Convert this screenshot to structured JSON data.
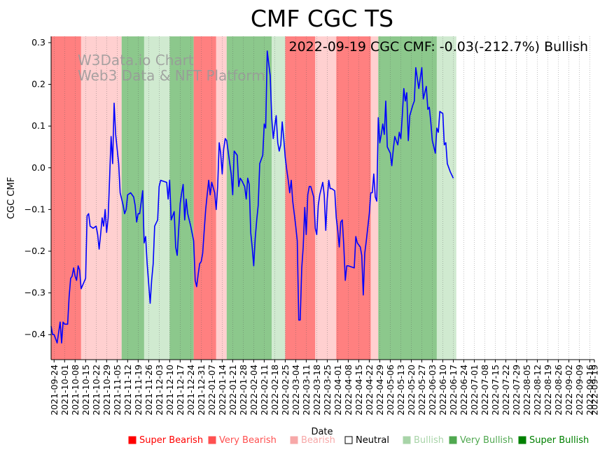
{
  "chart_data": {
    "type": "line",
    "title": "CMF CGC TS",
    "annotation": "2022-09-19 CGC CMF: -0.03(-212.7%) Bullish",
    "watermark": [
      "W3Data.io Chart",
      "Web3 Data & NFT Platform"
    ],
    "xlabel": "Date",
    "ylabel": "CGC CMF",
    "x_start": "2021-09-22",
    "x_end": "2022-09-19",
    "ylim": [
      -0.46,
      0.315
    ],
    "y_ticks": [
      -0.4,
      -0.3,
      -0.2,
      -0.1,
      0.0,
      0.1,
      0.2,
      0.3
    ],
    "y_tick_labels": [
      "−0.4",
      "−0.3",
      "−0.2",
      "−0.1",
      "0.0",
      "0.1",
      "0.2",
      "0.3"
    ],
    "x_tick_labels": [
      "2021-09-24",
      "2021-10-01",
      "2021-10-08",
      "2021-10-15",
      "2021-10-22",
      "2021-10-29",
      "2021-11-05",
      "2021-11-12",
      "2021-11-19",
      "2021-11-26",
      "2021-12-03",
      "2021-12-10",
      "2021-12-17",
      "2021-12-24",
      "2021-12-31",
      "2022-01-07",
      "2022-01-14",
      "2022-01-21",
      "2022-01-28",
      "2022-02-04",
      "2022-02-11",
      "2022-02-18",
      "2022-02-25",
      "2022-03-04",
      "2022-03-11",
      "2022-03-18",
      "2022-03-25",
      "2022-04-01",
      "2022-04-08",
      "2022-04-15",
      "2022-04-22",
      "2022-04-29",
      "2022-05-06",
      "2022-05-13",
      "2022-05-20",
      "2022-05-27",
      "2022-06-03",
      "2022-06-10",
      "2022-06-17",
      "2022-06-24",
      "2022-07-01",
      "2022-07-08",
      "2022-07-15",
      "2022-07-22",
      "2022-07-29",
      "2022-08-05",
      "2022-08-12",
      "2022-08-19",
      "2022-08-26",
      "2022-09-02",
      "2022-09-09",
      "2022-09-16",
      "2022-09-19"
    ],
    "series": [
      {
        "color": "#0000ff",
        "points": [
          [
            "2021-09-22",
            -0.38
          ],
          [
            "2021-09-23",
            -0.4
          ],
          [
            "2021-09-24",
            -0.4
          ],
          [
            "2021-09-26",
            -0.42
          ],
          [
            "2021-09-28",
            -0.37
          ],
          [
            "2021-09-29",
            -0.42
          ],
          [
            "2021-09-30",
            -0.37
          ],
          [
            "2021-10-01",
            -0.375
          ],
          [
            "2021-10-03",
            -0.375
          ],
          [
            "2021-10-04",
            -0.31
          ],
          [
            "2021-10-05",
            -0.265
          ],
          [
            "2021-10-06",
            -0.26
          ],
          [
            "2021-10-07",
            -0.24
          ],
          [
            "2021-10-08",
            -0.26
          ],
          [
            "2021-10-09",
            -0.27
          ],
          [
            "2021-10-10",
            -0.235
          ],
          [
            "2021-10-11",
            -0.245
          ],
          [
            "2021-10-12",
            -0.29
          ],
          [
            "2021-10-15",
            -0.265
          ],
          [
            "2021-10-16",
            -0.115
          ],
          [
            "2021-10-17",
            -0.11
          ],
          [
            "2021-10-18",
            -0.14
          ],
          [
            "2021-10-20",
            -0.145
          ],
          [
            "2021-10-22",
            -0.14
          ],
          [
            "2021-10-23",
            -0.16
          ],
          [
            "2021-10-24",
            -0.195
          ],
          [
            "2021-10-25",
            -0.16
          ],
          [
            "2021-10-26",
            -0.12
          ],
          [
            "2021-10-27",
            -0.14
          ],
          [
            "2021-10-28",
            -0.1
          ],
          [
            "2021-10-29",
            -0.155
          ],
          [
            "2021-10-30",
            -0.12
          ],
          [
            "2021-11-01",
            0.075
          ],
          [
            "2021-11-02",
            0.01
          ],
          [
            "2021-11-03",
            0.155
          ],
          [
            "2021-11-04",
            0.08
          ],
          [
            "2021-11-06",
            0.01
          ],
          [
            "2021-11-07",
            -0.06
          ],
          [
            "2021-11-09",
            -0.09
          ],
          [
            "2021-11-10",
            -0.11
          ],
          [
            "2021-11-11",
            -0.1
          ],
          [
            "2021-11-12",
            -0.065
          ],
          [
            "2021-11-14",
            -0.06
          ],
          [
            "2021-11-16",
            -0.07
          ],
          [
            "2021-11-17",
            -0.09
          ],
          [
            "2021-11-18",
            -0.13
          ],
          [
            "2021-11-19",
            -0.11
          ],
          [
            "2021-11-20",
            -0.11
          ],
          [
            "2021-11-22",
            -0.055
          ],
          [
            "2021-11-23",
            -0.18
          ],
          [
            "2021-11-24",
            -0.165
          ],
          [
            "2021-11-25",
            -0.23
          ],
          [
            "2021-11-27",
            -0.325
          ],
          [
            "2021-11-28",
            -0.27
          ],
          [
            "2021-11-29",
            -0.23
          ],
          [
            "2021-11-30",
            -0.14
          ],
          [
            "2021-12-02",
            -0.125
          ],
          [
            "2021-12-03",
            -0.045
          ],
          [
            "2021-12-04",
            -0.03
          ],
          [
            "2021-12-08",
            -0.035
          ],
          [
            "2021-12-09",
            -0.075
          ],
          [
            "2021-12-10",
            -0.03
          ],
          [
            "2021-12-11",
            -0.125
          ],
          [
            "2021-12-13",
            -0.105
          ],
          [
            "2021-12-14",
            -0.19
          ],
          [
            "2021-12-15",
            -0.21
          ],
          [
            "2021-12-17",
            -0.085
          ],
          [
            "2021-12-18",
            -0.06
          ],
          [
            "2021-12-19",
            -0.04
          ],
          [
            "2021-12-20",
            -0.125
          ],
          [
            "2021-12-21",
            -0.075
          ],
          [
            "2021-12-22",
            -0.11
          ],
          [
            "2021-12-24",
            -0.14
          ],
          [
            "2021-12-26",
            -0.175
          ],
          [
            "2021-12-27",
            -0.27
          ],
          [
            "2021-12-28",
            -0.285
          ],
          [
            "2021-12-29",
            -0.255
          ],
          [
            "2021-12-30",
            -0.23
          ],
          [
            "2021-12-31",
            -0.225
          ],
          [
            "2022-01-01",
            -0.205
          ],
          [
            "2022-01-02",
            -0.15
          ],
          [
            "2022-01-03",
            -0.1
          ],
          [
            "2022-01-04",
            -0.065
          ],
          [
            "2022-01-05",
            -0.03
          ],
          [
            "2022-01-06",
            -0.065
          ],
          [
            "2022-01-07",
            -0.035
          ],
          [
            "2022-01-09",
            -0.06
          ],
          [
            "2022-01-10",
            -0.1
          ],
          [
            "2022-01-11",
            -0.045
          ],
          [
            "2022-01-12",
            0.06
          ],
          [
            "2022-01-13",
            0.035
          ],
          [
            "2022-01-14",
            -0.015
          ],
          [
            "2022-01-15",
            0.045
          ],
          [
            "2022-01-16",
            0.07
          ],
          [
            "2022-01-17",
            0.065
          ],
          [
            "2022-01-20",
            -0.015
          ],
          [
            "2022-01-21",
            -0.065
          ],
          [
            "2022-01-22",
            0.04
          ],
          [
            "2022-01-24",
            0.03
          ],
          [
            "2022-01-25",
            -0.045
          ],
          [
            "2022-01-26",
            -0.025
          ],
          [
            "2022-01-27",
            -0.03
          ],
          [
            "2022-01-29",
            -0.045
          ],
          [
            "2022-01-30",
            -0.075
          ],
          [
            "2022-01-31",
            -0.025
          ],
          [
            "2022-02-01",
            -0.04
          ],
          [
            "2022-02-02",
            -0.155
          ],
          [
            "2022-02-03",
            -0.19
          ],
          [
            "2022-02-04",
            -0.235
          ],
          [
            "2022-02-05",
            -0.17
          ],
          [
            "2022-02-06",
            -0.125
          ],
          [
            "2022-02-07",
            -0.09
          ],
          [
            "2022-02-08",
            0.01
          ],
          [
            "2022-02-10",
            0.03
          ],
          [
            "2022-02-11",
            0.105
          ],
          [
            "2022-02-12",
            0.095
          ],
          [
            "2022-02-13",
            0.28
          ],
          [
            "2022-02-14",
            0.25
          ],
          [
            "2022-02-15",
            0.22
          ],
          [
            "2022-02-16",
            0.12
          ],
          [
            "2022-02-17",
            0.07
          ],
          [
            "2022-02-18",
            0.1
          ],
          [
            "2022-02-19",
            0.125
          ],
          [
            "2022-02-20",
            0.06
          ],
          [
            "2022-02-21",
            0.04
          ],
          [
            "2022-02-22",
            0.055
          ],
          [
            "2022-02-23",
            0.11
          ],
          [
            "2022-02-24",
            0.07
          ],
          [
            "2022-02-25",
            0.025
          ],
          [
            "2022-02-26",
            -0.005
          ],
          [
            "2022-02-27",
            -0.03
          ],
          [
            "2022-02-28",
            -0.06
          ],
          [
            "2022-03-01",
            -0.03
          ],
          [
            "2022-03-02",
            -0.08
          ],
          [
            "2022-03-03",
            -0.11
          ],
          [
            "2022-03-04",
            -0.14
          ],
          [
            "2022-03-05",
            -0.175
          ],
          [
            "2022-03-06",
            -0.365
          ],
          [
            "2022-03-07",
            -0.365
          ],
          [
            "2022-03-08",
            -0.24
          ],
          [
            "2022-03-09",
            -0.19
          ],
          [
            "2022-03-10",
            -0.095
          ],
          [
            "2022-03-11",
            -0.16
          ],
          [
            "2022-03-12",
            -0.065
          ],
          [
            "2022-03-13",
            -0.045
          ],
          [
            "2022-03-14",
            -0.045
          ],
          [
            "2022-03-16",
            -0.07
          ],
          [
            "2022-03-17",
            -0.145
          ],
          [
            "2022-03-18",
            -0.16
          ],
          [
            "2022-03-19",
            -0.09
          ],
          [
            "2022-03-20",
            -0.065
          ],
          [
            "2022-03-22",
            -0.035
          ],
          [
            "2022-03-23",
            -0.065
          ],
          [
            "2022-03-24",
            -0.15
          ],
          [
            "2022-03-25",
            -0.075
          ],
          [
            "2022-03-26",
            -0.03
          ],
          [
            "2022-03-27",
            -0.05
          ],
          [
            "2022-03-28",
            -0.05
          ],
          [
            "2022-03-30",
            -0.055
          ],
          [
            "2022-03-31",
            -0.12
          ],
          [
            "2022-04-01",
            -0.15
          ],
          [
            "2022-04-02",
            -0.19
          ],
          [
            "2022-04-03",
            -0.13
          ],
          [
            "2022-04-04",
            -0.125
          ],
          [
            "2022-04-05",
            -0.185
          ],
          [
            "2022-04-06",
            -0.27
          ],
          [
            "2022-04-07",
            -0.235
          ],
          [
            "2022-04-08",
            -0.235
          ],
          [
            "2022-04-12",
            -0.24
          ],
          [
            "2022-04-13",
            -0.165
          ],
          [
            "2022-04-14",
            -0.18
          ],
          [
            "2022-04-16",
            -0.19
          ],
          [
            "2022-04-17",
            -0.21
          ],
          [
            "2022-04-18",
            -0.305
          ],
          [
            "2022-04-19",
            -0.205
          ],
          [
            "2022-04-20",
            -0.175
          ],
          [
            "2022-04-22",
            -0.11
          ],
          [
            "2022-04-23",
            -0.06
          ],
          [
            "2022-04-24",
            -0.06
          ],
          [
            "2022-04-25",
            -0.015
          ],
          [
            "2022-04-26",
            -0.07
          ],
          [
            "2022-04-27",
            -0.08
          ],
          [
            "2022-04-28",
            0.12
          ],
          [
            "2022-04-29",
            0.06
          ],
          [
            "2022-04-30",
            0.08
          ],
          [
            "2022-05-01",
            0.105
          ],
          [
            "2022-05-02",
            0.08
          ],
          [
            "2022-05-03",
            0.16
          ],
          [
            "2022-05-04",
            0.05
          ],
          [
            "2022-05-06",
            0.035
          ],
          [
            "2022-05-07",
            0.005
          ],
          [
            "2022-05-08",
            0.045
          ],
          [
            "2022-05-09",
            0.075
          ],
          [
            "2022-05-10",
            0.065
          ],
          [
            "2022-05-11",
            0.055
          ],
          [
            "2022-05-12",
            0.085
          ],
          [
            "2022-05-13",
            0.07
          ],
          [
            "2022-05-14",
            0.125
          ],
          [
            "2022-05-15",
            0.19
          ],
          [
            "2022-05-16",
            0.16
          ],
          [
            "2022-05-17",
            0.18
          ],
          [
            "2022-05-18",
            0.065
          ],
          [
            "2022-05-19",
            0.125
          ],
          [
            "2022-05-21",
            0.15
          ],
          [
            "2022-05-22",
            0.16
          ],
          [
            "2022-05-23",
            0.24
          ],
          [
            "2022-05-24",
            0.215
          ],
          [
            "2022-05-25",
            0.19
          ],
          [
            "2022-05-26",
            0.215
          ],
          [
            "2022-05-27",
            0.24
          ],
          [
            "2022-05-28",
            0.165
          ],
          [
            "2022-05-30",
            0.195
          ],
          [
            "2022-05-31",
            0.14
          ],
          [
            "2022-06-01",
            0.145
          ],
          [
            "2022-06-02",
            0.11
          ],
          [
            "2022-06-03",
            0.065
          ],
          [
            "2022-06-05",
            0.035
          ],
          [
            "2022-06-06",
            0.095
          ],
          [
            "2022-06-07",
            0.085
          ],
          [
            "2022-06-08",
            0.135
          ],
          [
            "2022-06-10",
            0.13
          ],
          [
            "2022-06-11",
            0.055
          ],
          [
            "2022-06-12",
            0.06
          ],
          [
            "2022-06-13",
            0.01
          ],
          [
            "2022-06-15",
            -0.01
          ],
          [
            "2022-06-17",
            -0.025
          ]
        ]
      }
    ],
    "bands": [
      {
        "start": "2021-09-22",
        "end": "2021-10-12",
        "sentiment": "very_bearish"
      },
      {
        "start": "2021-10-12",
        "end": "2021-11-08",
        "sentiment": "bearish"
      },
      {
        "start": "2021-11-08",
        "end": "2021-11-23",
        "sentiment": "very_bullish"
      },
      {
        "start": "2021-11-23",
        "end": "2021-12-10",
        "sentiment": "bullish"
      },
      {
        "start": "2021-12-10",
        "end": "2021-12-26",
        "sentiment": "very_bullish"
      },
      {
        "start": "2021-12-26",
        "end": "2022-01-10",
        "sentiment": "very_bearish"
      },
      {
        "start": "2022-01-10",
        "end": "2022-01-17",
        "sentiment": "bearish"
      },
      {
        "start": "2022-01-17",
        "end": "2022-02-16",
        "sentiment": "very_bullish"
      },
      {
        "start": "2022-02-16",
        "end": "2022-02-25",
        "sentiment": "bullish"
      },
      {
        "start": "2022-02-25",
        "end": "2022-03-17",
        "sentiment": "very_bearish"
      },
      {
        "start": "2022-03-17",
        "end": "2022-03-31",
        "sentiment": "bearish"
      },
      {
        "start": "2022-03-31",
        "end": "2022-04-23",
        "sentiment": "very_bearish"
      },
      {
        "start": "2022-04-23",
        "end": "2022-04-28",
        "sentiment": "bearish"
      },
      {
        "start": "2022-04-28",
        "end": "2022-06-06",
        "sentiment": "very_bullish"
      },
      {
        "start": "2022-06-06",
        "end": "2022-06-19",
        "sentiment": "bullish"
      }
    ],
    "legend": {
      "placement": "bottom",
      "items": [
        {
          "label": "Super Bearish",
          "color": "#ff0000"
        },
        {
          "label": "Very Bearish",
          "color": "#ff5050"
        },
        {
          "label": "Bearish",
          "color": "#f7a8a8"
        },
        {
          "label": "Neutral",
          "color": "#000000"
        },
        {
          "label": "Bullish",
          "color": "#a8d4a8"
        },
        {
          "label": "Very Bullish",
          "color": "#50a850"
        },
        {
          "label": "Super Bullish",
          "color": "#008000"
        }
      ]
    },
    "band_colors": {
      "very_bearish": "#ff8080",
      "bearish": "#ffd0d0",
      "bullish": "#d0ead0",
      "very_bullish": "#8cc88c"
    },
    "grid": "vertical dotted"
  }
}
